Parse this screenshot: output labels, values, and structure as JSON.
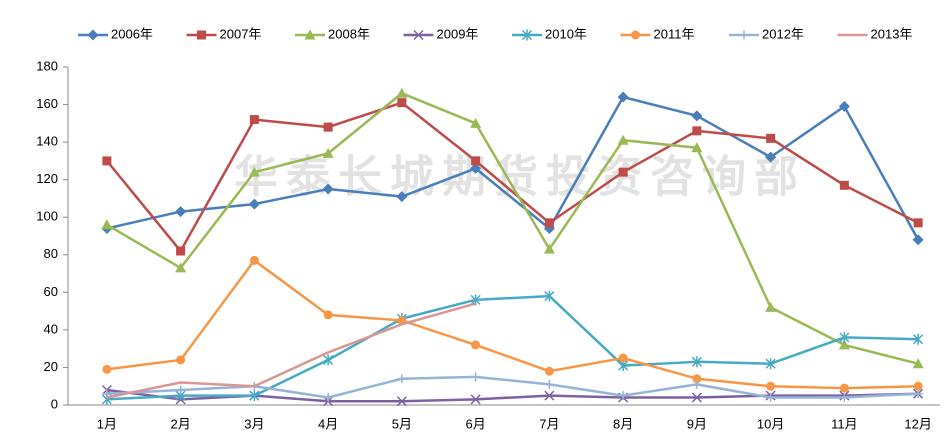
{
  "chart_data": {
    "type": "line",
    "watermark": "华泰长城期货投资咨询部",
    "categories": [
      "1月",
      "2月",
      "3月",
      "4月",
      "5月",
      "6月",
      "7月",
      "8月",
      "9月",
      "10月",
      "11月",
      "12月"
    ],
    "series": [
      {
        "name": "2006年",
        "color": "#4a7ebb",
        "marker": "diamond",
        "values": [
          94,
          103,
          107,
          115,
          111,
          126,
          94,
          164,
          154,
          132,
          159,
          88
        ]
      },
      {
        "name": "2007年",
        "color": "#be4b48",
        "marker": "square",
        "values": [
          130,
          82,
          152,
          148,
          161,
          130,
          97,
          124,
          146,
          142,
          117,
          97
        ]
      },
      {
        "name": "2008年",
        "color": "#98b954",
        "marker": "triangle",
        "values": [
          96,
          73,
          124,
          134,
          166,
          150,
          83,
          141,
          137,
          52,
          32,
          22
        ]
      },
      {
        "name": "2009年",
        "color": "#7d60a0",
        "marker": "x",
        "values": [
          8,
          3,
          5,
          2,
          2,
          3,
          5,
          4,
          4,
          5,
          5,
          6
        ]
      },
      {
        "name": "2010年",
        "color": "#46aac5",
        "marker": "star",
        "values": [
          3,
          5,
          5,
          24,
          46,
          56,
          58,
          21,
          23,
          22,
          36,
          35
        ]
      },
      {
        "name": "2011年",
        "color": "#f79646",
        "marker": "circle",
        "values": [
          19,
          24,
          77,
          48,
          45,
          32,
          18,
          25,
          14,
          10,
          9,
          10
        ]
      },
      {
        "name": "2012年",
        "color": "#95b3d7",
        "marker": "plus",
        "values": [
          6,
          8,
          10,
          4,
          14,
          15,
          11,
          5,
          11,
          4,
          4,
          6
        ]
      },
      {
        "name": "2013年",
        "color": "#d99694",
        "marker": "none",
        "values": [
          4,
          12,
          10,
          28,
          43,
          54,
          null,
          null,
          null,
          null,
          null,
          null
        ]
      }
    ],
    "ylim": [
      0,
      180
    ],
    "yticks": [
      0,
      20,
      40,
      60,
      80,
      100,
      120,
      140,
      160,
      180
    ],
    "grid": false,
    "legend": "top"
  }
}
